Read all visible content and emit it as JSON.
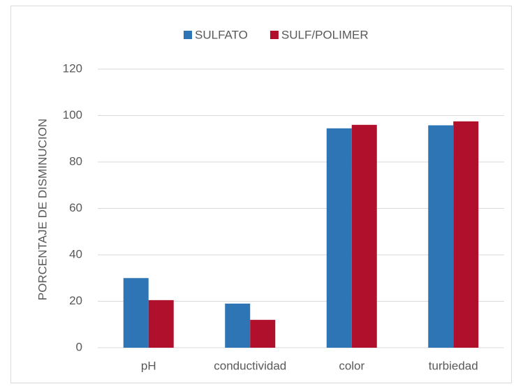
{
  "chart_data": {
    "type": "bar",
    "categories": [
      "pH",
      "conductividad",
      "color",
      "turbiedad"
    ],
    "series": [
      {
        "name": "SULFATO",
        "color": "#2e75b6",
        "values": [
          30,
          19,
          94.5,
          95.8
        ]
      },
      {
        "name": "SULF/POLIMER",
        "color": "#b0102b",
        "values": [
          20.5,
          12,
          96,
          97.5
        ]
      }
    ],
    "y_label": "PORCENTAJE  DE  DISMINUCION",
    "ylim": [
      0,
      120
    ],
    "yticks": [
      0,
      20,
      40,
      60,
      80,
      100,
      120
    ],
    "grid": true,
    "legend": "top"
  }
}
